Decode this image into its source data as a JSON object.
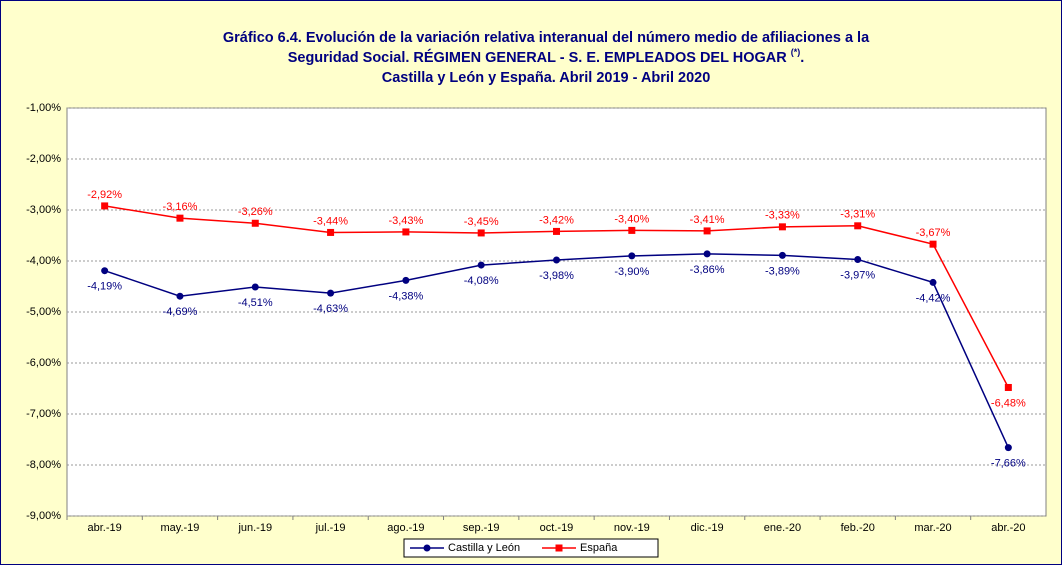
{
  "chart_data": {
    "type": "line",
    "title": {
      "line1": "Gráfico 6.4. Evolución de la variación relativa interanual del número medio de afiliaciones a la",
      "line2": "Seguridad Social. RÉGIMEN GENERAL - S. E. EMPLEADOS DEL HOGAR",
      "line2_note": "(*)",
      "line2_end": ".",
      "line3": "Castilla y León y España. Abril 2019 - Abril 2020"
    },
    "categories": [
      "abr.-19",
      "may.-19",
      "jun.-19",
      "jul.-19",
      "ago.-19",
      "sep.-19",
      "oct.-19",
      "nov.-19",
      "dic.-19",
      "ene.-20",
      "feb.-20",
      "mar.-20",
      "abr.-20"
    ],
    "series": [
      {
        "name": "Castilla y León",
        "color": "#000080",
        "marker": "circle",
        "values": [
          -4.19,
          -4.69,
          -4.51,
          -4.63,
          -4.38,
          -4.08,
          -3.98,
          -3.9,
          -3.86,
          -3.89,
          -3.97,
          -4.42,
          -7.66
        ],
        "value_labels": [
          "-4,19%",
          "-4,69%",
          "-4,51%",
          "-4,63%",
          "-4,38%",
          "-4,08%",
          "-3,98%",
          "-3,90%",
          "-3,86%",
          "-3,89%",
          "-3,97%",
          "-4,42%",
          "-7,66%"
        ]
      },
      {
        "name": "España",
        "color": "#ff0000",
        "marker": "square",
        "values": [
          -2.92,
          -3.16,
          -3.26,
          -3.44,
          -3.43,
          -3.45,
          -3.42,
          -3.4,
          -3.41,
          -3.33,
          -3.31,
          -3.67,
          -6.48
        ],
        "value_labels": [
          "-2,92%",
          "-3,16%",
          "-3,26%",
          "-3,44%",
          "-3,43%",
          "-3,45%",
          "-3,42%",
          "-3,40%",
          "-3,41%",
          "-3,33%",
          "-3,31%",
          "-3,67%",
          "-6,48%"
        ]
      }
    ],
    "ylim": [
      -9,
      -1
    ],
    "yticks": [
      {
        "value": -1,
        "label": "-1,00%"
      },
      {
        "value": -2,
        "label": "-2,00%"
      },
      {
        "value": -3,
        "label": "-3,00%"
      },
      {
        "value": -4,
        "label": "-4,00%"
      },
      {
        "value": -5,
        "label": "-5,00%"
      },
      {
        "value": -6,
        "label": "-6,00%"
      },
      {
        "value": -7,
        "label": "-7,00%"
      },
      {
        "value": -8,
        "label": "-8,00%"
      },
      {
        "value": -9,
        "label": "-9,00%"
      }
    ],
    "grid": true,
    "legend": "bottom"
  }
}
